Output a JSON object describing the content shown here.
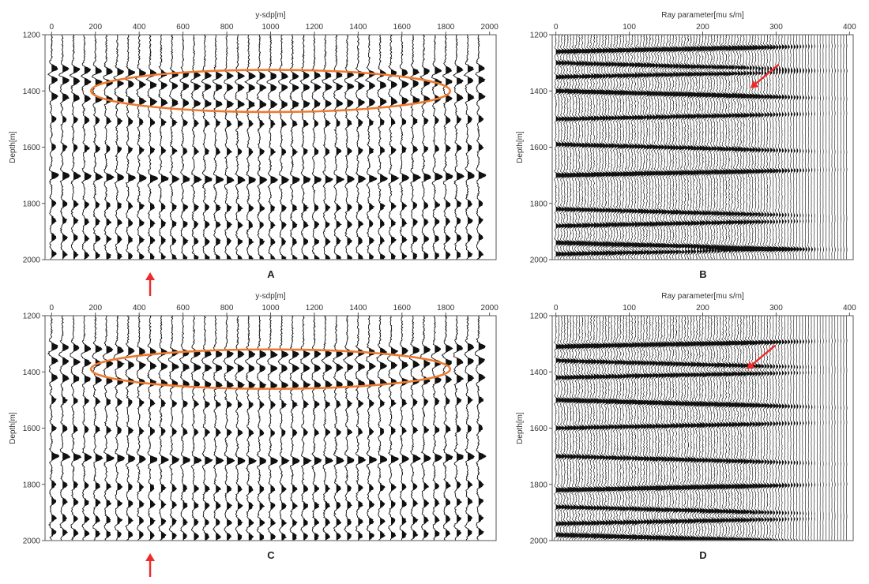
{
  "figure": {
    "panels": [
      {
        "id": "A",
        "label": "A",
        "xlabel": "y-sdp[m]",
        "ylabel": "Depth[m]",
        "xticks": [
          0,
          200,
          400,
          600,
          800,
          1000,
          1200,
          1400,
          1600,
          1800,
          2000
        ],
        "yticks": [
          1200,
          1400,
          1600,
          1800,
          2000
        ]
      },
      {
        "id": "B",
        "label": "B",
        "xlabel": "Ray parameter[mu s/m]",
        "ylabel": "Depth[m]",
        "xticks": [
          0,
          100,
          200,
          300,
          400
        ],
        "yticks": [
          1200,
          1400,
          1600,
          1800,
          2000
        ]
      },
      {
        "id": "C",
        "label": "C",
        "xlabel": "y-sdp[m]",
        "ylabel": "Depth[m]",
        "xticks": [
          0,
          200,
          400,
          600,
          800,
          1000,
          1200,
          1400,
          1600,
          1800,
          2000
        ],
        "yticks": [
          1200,
          1400,
          1600,
          1800,
          2000
        ]
      },
      {
        "id": "D",
        "label": "D",
        "xlabel": "Ray parameter[mu s/m]",
        "ylabel": "Depth[m]",
        "xticks": [
          0,
          100,
          200,
          300,
          400
        ],
        "yticks": [
          1200,
          1400,
          1600,
          1800,
          2000
        ]
      }
    ],
    "colors": {
      "ellipse": "#ee7a30",
      "arrow": "#ee2b2b",
      "trace": "#111111"
    }
  },
  "chart_data": [
    {
      "type": "wiggle",
      "panel": "A",
      "xlabel": "y-sdp[m]",
      "ylabel": "Depth[m]",
      "xlim": [
        -30,
        2030
      ],
      "ylim": [
        2000,
        1200
      ],
      "trace_spacing": 50,
      "traces_x_range": [
        0,
        1950
      ],
      "reflectors_depth": [
        1320,
        1360,
        1420,
        1500,
        1600,
        1700,
        1800,
        1860,
        1920,
        1980
      ],
      "ellipse": {
        "center": [
          1000,
          1400
        ],
        "radius": [
          820,
          75
        ]
      },
      "arrow_x": 450
    },
    {
      "type": "wiggle",
      "panel": "B",
      "xlabel": "Ray parameter[mu s/m]",
      "ylabel": "Depth[m]",
      "xlim": [
        -5,
        405
      ],
      "ylim": [
        2000,
        1200
      ],
      "trace_spacing": 4,
      "traces_x_range": [
        0,
        396
      ],
      "reflectors_depth": [
        1260,
        1300,
        1350,
        1400,
        1500,
        1590,
        1700,
        1820,
        1880,
        1940,
        1980
      ],
      "arrow_target": [
        265,
        1390
      ]
    },
    {
      "type": "wiggle",
      "panel": "C",
      "xlabel": "y-sdp[m]",
      "ylabel": "Depth[m]",
      "xlim": [
        -30,
        2030
      ],
      "ylim": [
        2000,
        1200
      ],
      "trace_spacing": 50,
      "traces_x_range": [
        0,
        1950
      ],
      "reflectors_depth": [
        1310,
        1360,
        1420,
        1500,
        1600,
        1700,
        1800,
        1860,
        1920,
        1970
      ],
      "ellipse": {
        "center": [
          1000,
          1390
        ],
        "radius": [
          820,
          70
        ]
      },
      "arrow_x": 450
    },
    {
      "type": "wiggle",
      "panel": "D",
      "xlabel": "Ray parameter[mu s/m]",
      "ylabel": "Depth[m]",
      "xlim": [
        -5,
        405
      ],
      "ylim": [
        2000,
        1200
      ],
      "trace_spacing": 4,
      "traces_x_range": [
        0,
        396
      ],
      "reflectors_depth": [
        1310,
        1360,
        1420,
        1500,
        1600,
        1700,
        1820,
        1880,
        1940,
        1980
      ],
      "arrow_target": [
        260,
        1390
      ]
    }
  ]
}
